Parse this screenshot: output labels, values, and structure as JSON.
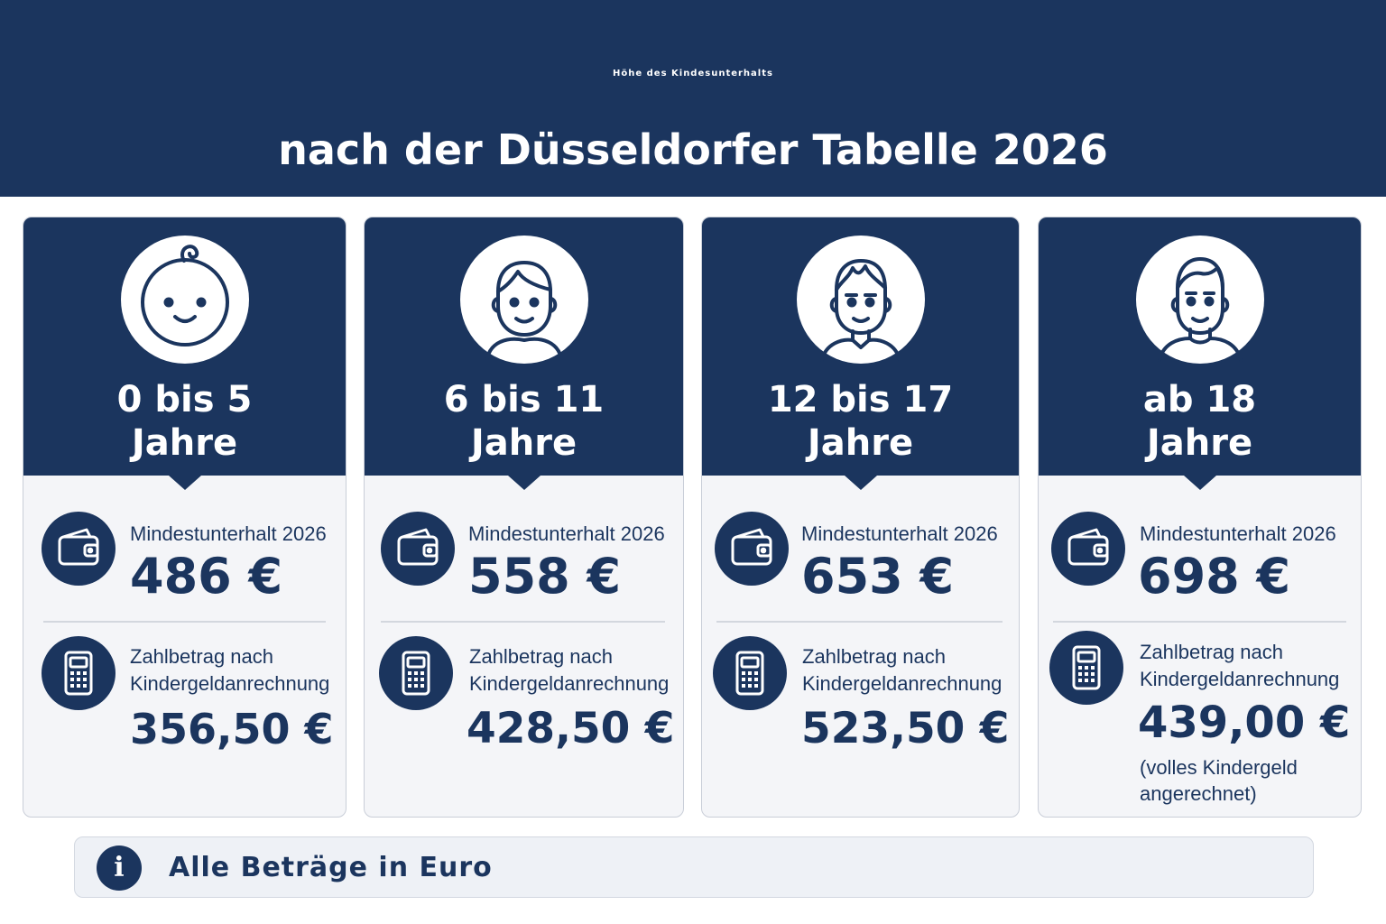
{
  "header": {
    "title": "Höhe des Kindesunterhalts",
    "subtitle": "nach der Düsseldorfer Tabelle 2026"
  },
  "colors": {
    "primary": "#1b355e",
    "card_bg": "#f4f5f8",
    "info_bg": "#eef1f6"
  },
  "cards": [
    {
      "age_line1": "0 bis 5",
      "age_line2": "Jahre",
      "avatar_icon": "baby-face-icon",
      "min_label": "Mindestunterhalt 2026",
      "min_amount": "486 €",
      "pay_label_line1": "Zahlbetrag nach",
      "pay_label_line2": "Kindergeldanrechnung",
      "pay_amount": "356,50 €"
    },
    {
      "age_line1": "6 bis 11",
      "age_line2": "Jahre",
      "avatar_icon": "child-face-icon",
      "min_label": "Mindestunterhalt 2026",
      "min_amount": "558 €",
      "pay_label_line1": "Zahlbetrag nach",
      "pay_label_line2": "Kindergeldanrechnung",
      "pay_amount": "428,50 €"
    },
    {
      "age_line1": "12 bis 17",
      "age_line2": "Jahre",
      "avatar_icon": "teen-face-icon",
      "min_label": "Mindestunterhalt 2026",
      "min_amount": "653 €",
      "pay_label_line1": "Zahlbetrag nach",
      "pay_label_line2": "Kindergeldanrechnung",
      "pay_amount": "523,50 €"
    },
    {
      "age_line1": "ab 18",
      "age_line2": "Jahre",
      "avatar_icon": "adult-face-icon",
      "min_label": "Mindestunterhalt 2026",
      "min_amount": "698 €",
      "pay_label_line1": "Zahlbetrag nach",
      "pay_label_line2": "Kindergeldanrechnung",
      "pay_amount": "439,00 €",
      "note_line1": "(volles Kindergeld",
      "note_line2": "angerechnet)"
    }
  ],
  "icons": {
    "min_icon": "wallet-icon",
    "pay_icon": "calculator-icon",
    "info_icon": "info-icon"
  },
  "info": {
    "icon_glyph": "i",
    "text": "Alle Beträge in Euro"
  }
}
